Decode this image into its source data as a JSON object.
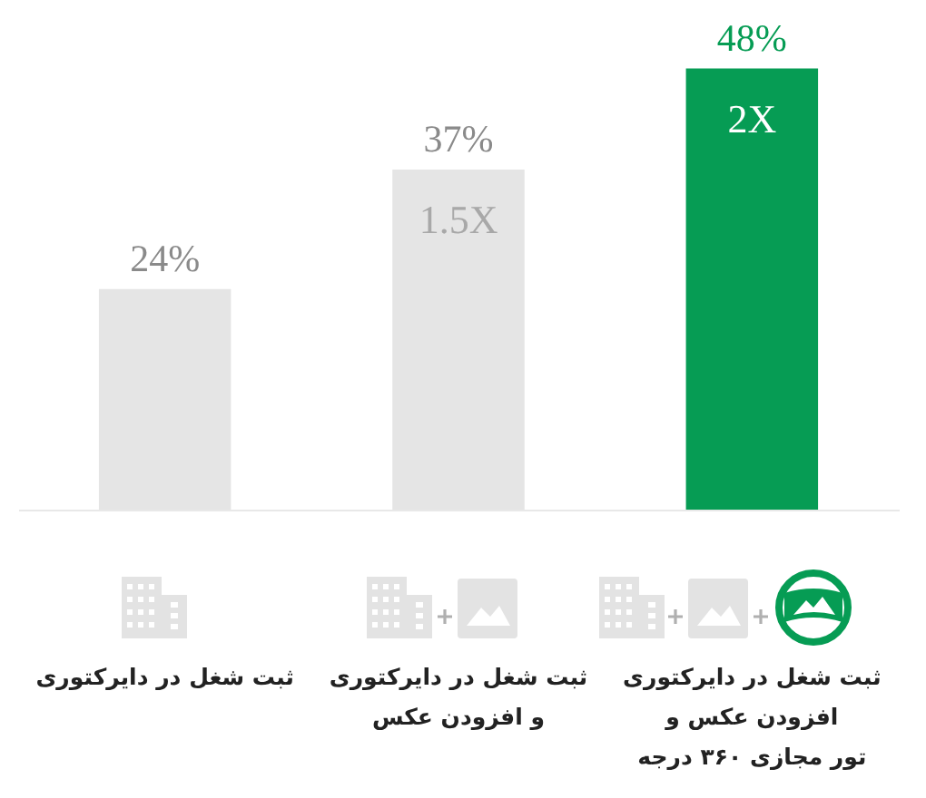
{
  "chart_data": {
    "type": "bar",
    "categories": [
      "ثبت شغل در دایرکتوری",
      "ثبت شغل در دایرکتوری\nو افزودن عکس",
      "ثبت شغل در دایرکتوری\nافزودن عکس و\nتور مجازی ۳۶۰ درجه"
    ],
    "values": [
      24,
      37,
      48
    ],
    "colors": [
      "#e5e5e5",
      "#e5e5e5",
      "#069c54"
    ],
    "value_labels": [
      "24%",
      "37%",
      "48%"
    ],
    "annotations": [
      "1.5X",
      "2X"
    ]
  }
}
